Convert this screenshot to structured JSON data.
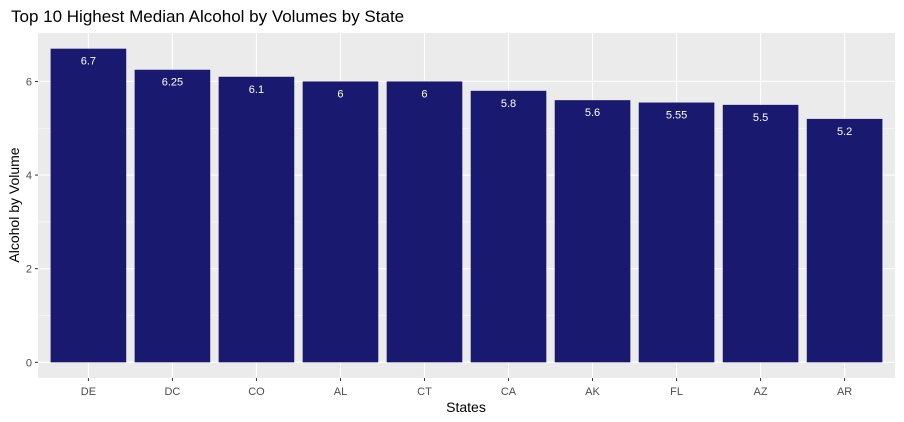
{
  "chart_data": {
    "type": "bar",
    "title": "Top 10 Highest Median Alcohol by Volumes by State",
    "xlabel": "States",
    "ylabel": "Alcohol by Volume",
    "categories": [
      "DE",
      "DC",
      "CO",
      "AL",
      "CT",
      "CA",
      "AK",
      "FL",
      "AZ",
      "AR"
    ],
    "values": [
      6.7,
      6.25,
      6.1,
      6,
      6,
      5.8,
      5.6,
      5.55,
      5.5,
      5.2
    ],
    "data_labels": [
      "6.7",
      "6.25",
      "6.1",
      "6",
      "6",
      "5.8",
      "5.6",
      "5.55",
      "5.5",
      "5.2"
    ],
    "ylim": [
      -0.335,
      7.035
    ],
    "yticks": [
      0,
      2,
      4,
      6
    ],
    "ytick_labels": [
      "0",
      "2",
      "4",
      "6"
    ],
    "grid": true,
    "legend": "none",
    "colors": {
      "bar": "#191970",
      "panel_background": "#ebebeb",
      "grid": "#ffffff"
    }
  }
}
